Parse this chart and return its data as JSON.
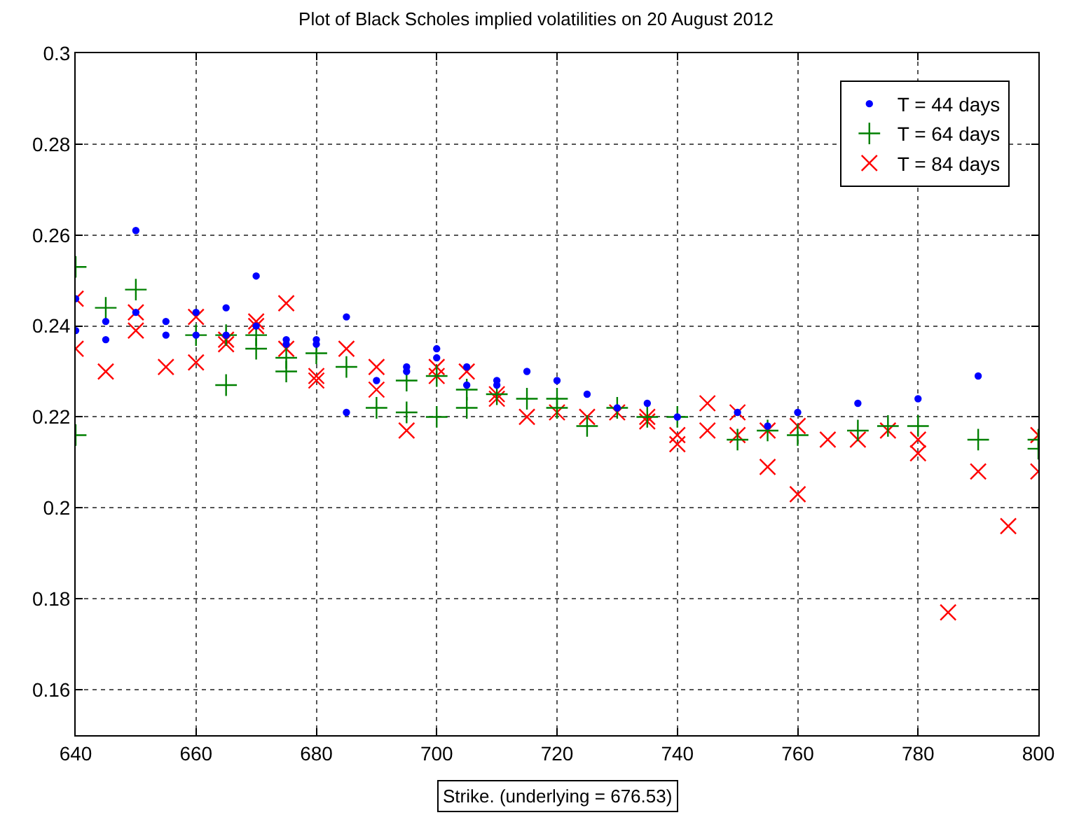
{
  "chart_data": {
    "type": "scatter",
    "title": "Plot of Black Scholes implied volatilities on 20 August 2012",
    "xlabel": "Strike. (underlying = 676.53)",
    "xlim": [
      640,
      800
    ],
    "xticks": [
      640,
      660,
      680,
      700,
      720,
      740,
      760,
      780,
      800
    ],
    "ylim": [
      0.15,
      0.3
    ],
    "yticks": [
      0.16,
      0.18,
      0.2,
      0.22,
      0.24,
      0.26,
      0.28,
      0.3
    ],
    "grid": true,
    "legend": "top right",
    "series": [
      {
        "name": "T = 44 days",
        "color": "#0000ff",
        "marker": "circle",
        "x": [
          640,
          640,
          645,
          645,
          650,
          650,
          655,
          655,
          660,
          660,
          665,
          665,
          670,
          670,
          675,
          675,
          680,
          680,
          685,
          685,
          690,
          695,
          695,
          700,
          700,
          705,
          705,
          710,
          710,
          715,
          720,
          725,
          730,
          735,
          740,
          750,
          755,
          760,
          770,
          780,
          790
        ],
        "values": [
          0.246,
          0.239,
          0.241,
          0.237,
          0.261,
          0.243,
          0.241,
          0.238,
          0.243,
          0.238,
          0.244,
          0.238,
          0.251,
          0.24,
          0.237,
          0.236,
          0.237,
          0.236,
          0.242,
          0.221,
          0.228,
          0.231,
          0.23,
          0.235,
          0.233,
          0.231,
          0.227,
          0.228,
          0.227,
          0.23,
          0.228,
          0.225,
          0.222,
          0.223,
          0.22,
          0.221,
          0.218,
          0.221,
          0.223,
          0.224,
          0.229
        ]
      },
      {
        "name": "T = 64 days",
        "color": "#008000",
        "marker": "cross",
        "x": [
          640,
          640,
          645,
          650,
          660,
          665,
          665,
          670,
          670,
          675,
          675,
          680,
          685,
          690,
          695,
          695,
          700,
          700,
          705,
          705,
          710,
          715,
          720,
          720,
          725,
          730,
          735,
          740,
          750,
          755,
          760,
          770,
          775,
          780,
          790,
          800,
          800
        ],
        "values": [
          0.253,
          0.216,
          0.244,
          0.248,
          0.238,
          0.238,
          0.227,
          0.238,
          0.235,
          0.233,
          0.23,
          0.234,
          0.231,
          0.222,
          0.228,
          0.221,
          0.229,
          0.22,
          0.226,
          0.222,
          0.225,
          0.224,
          0.224,
          0.222,
          0.218,
          0.222,
          0.22,
          0.22,
          0.215,
          0.217,
          0.216,
          0.217,
          0.218,
          0.218,
          0.215,
          0.215,
          0.213
        ]
      },
      {
        "name": "T = 84 days",
        "color": "#ff0000",
        "marker": "x",
        "x": [
          640,
          640,
          645,
          650,
          650,
          655,
          660,
          660,
          665,
          665,
          670,
          670,
          675,
          675,
          680,
          680,
          685,
          690,
          690,
          695,
          700,
          700,
          705,
          710,
          710,
          715,
          720,
          725,
          730,
          735,
          735,
          740,
          740,
          745,
          745,
          750,
          750,
          755,
          755,
          760,
          760,
          765,
          770,
          775,
          780,
          780,
          785,
          790,
          795,
          800,
          800
        ],
        "values": [
          0.246,
          0.235,
          0.23,
          0.243,
          0.239,
          0.231,
          0.242,
          0.232,
          0.237,
          0.236,
          0.241,
          0.24,
          0.245,
          0.235,
          0.229,
          0.228,
          0.235,
          0.231,
          0.226,
          0.217,
          0.231,
          0.229,
          0.23,
          0.225,
          0.224,
          0.22,
          0.221,
          0.22,
          0.221,
          0.22,
          0.219,
          0.216,
          0.214,
          0.223,
          0.217,
          0.221,
          0.216,
          0.217,
          0.209,
          0.218,
          0.203,
          0.215,
          0.215,
          0.217,
          0.215,
          0.212,
          0.177,
          0.208,
          0.196,
          0.216,
          0.208
        ]
      }
    ]
  }
}
